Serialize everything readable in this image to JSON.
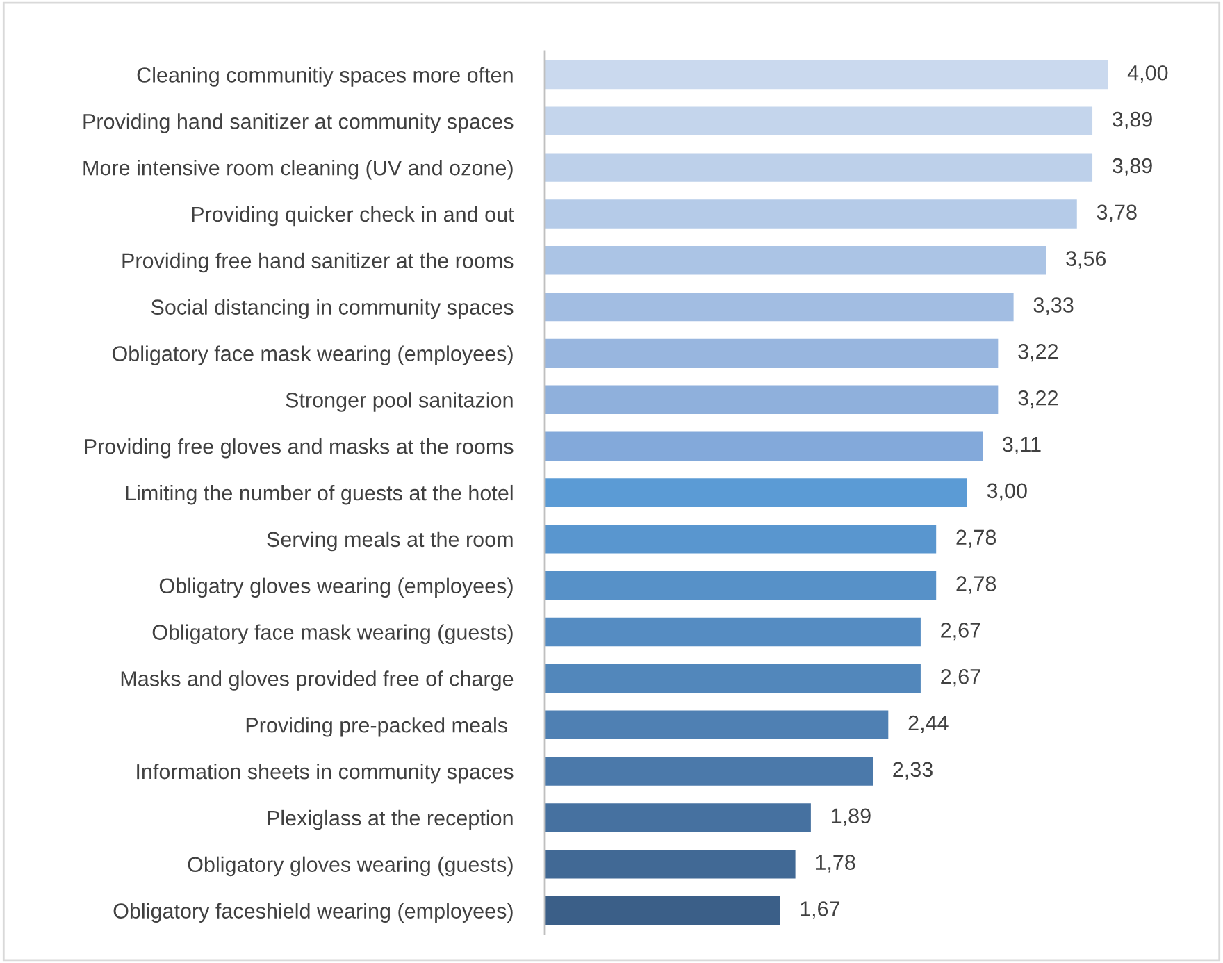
{
  "chart_data": {
    "type": "bar",
    "orientation": "horizontal",
    "categories": [
      "Cleaning communitiy spaces more often",
      "Providing hand sanitizer at community spaces",
      "More intensive room cleaning (UV and ozone)",
      "Providing quicker check in and out",
      "Providing free hand sanitizer at the rooms",
      "Social distancing in community spaces",
      "Obligatory face mask wearing (employees)",
      "Stronger pool sanitazion",
      "Providing free gloves and masks at the rooms",
      "Limiting the number of guests at the hotel",
      "Serving meals at the room",
      "Obligatry gloves wearing (employees)",
      "Obligatory face mask wearing (guests)",
      "Masks and gloves provided free of charge",
      "Providing pre-packed meals ",
      "Information sheets in community spaces",
      "Plexiglass at the reception",
      "Obligatory gloves wearing (guests)",
      "Obligatory faceshield wearing (employees)"
    ],
    "values": [
      4.0,
      3.89,
      3.89,
      3.78,
      3.56,
      3.33,
      3.22,
      3.22,
      3.11,
      3.0,
      2.78,
      2.78,
      2.67,
      2.67,
      2.44,
      2.33,
      1.89,
      1.78,
      1.67
    ],
    "value_labels": [
      "4,00",
      "3,89",
      "3,89",
      "3,78",
      "3,56",
      "3,33",
      "3,22",
      "3,22",
      "3,11",
      "3,00",
      "2,78",
      "2,78",
      "2,67",
      "2,67",
      "2,44",
      "2,33",
      "1,89",
      "1,78",
      "1,67"
    ],
    "colors": [
      "#cad9ee",
      "#c4d5ec",
      "#bdd0ea",
      "#b5cbe8",
      "#abc4e5",
      "#a2bde2",
      "#98b6df",
      "#8fb0dc",
      "#83a9da",
      "#5b9bd5",
      "#5996cf",
      "#5791c8",
      "#558cc2",
      "#5287bb",
      "#4f80b3",
      "#4b79aa",
      "#4671a0",
      "#416995",
      "#3b5f88"
    ],
    "grid": false
  }
}
